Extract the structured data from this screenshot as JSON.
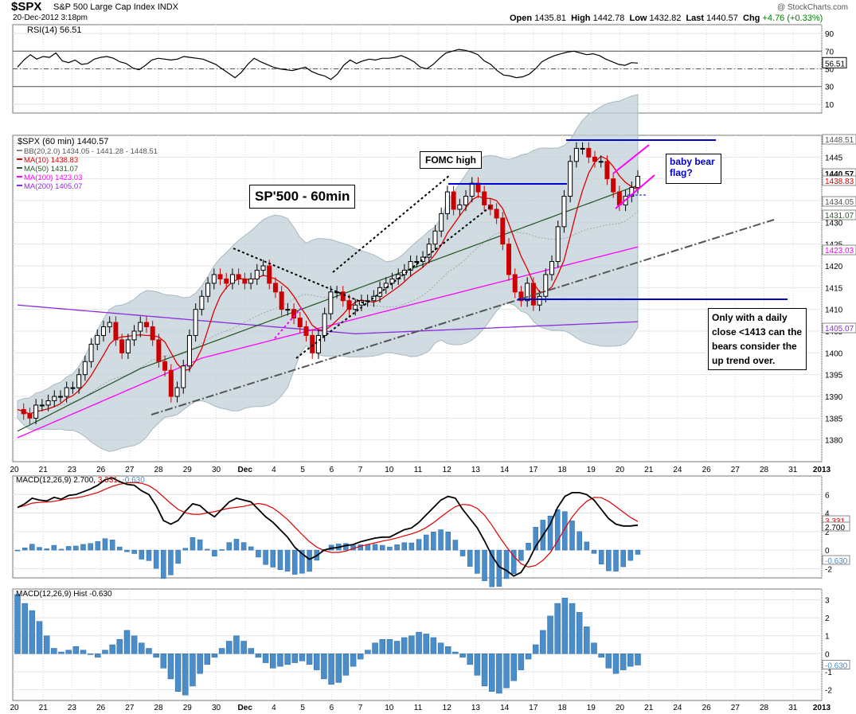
{
  "header": {
    "symbol": "$SPX",
    "description": "S&P 500 Large Cap Index",
    "exchange": "INDX",
    "datetime": "20-Dec-2012 3:18pm",
    "brand": "@ StockCharts.com",
    "open_label": "Open",
    "open": "1435.81",
    "high_label": "High",
    "high": "1442.78",
    "low_label": "Low",
    "low": "1432.82",
    "last_label": "Last",
    "last": "1440.57",
    "chg_label": "Chg",
    "chg": "+4.76 (+0.33%)"
  },
  "colors": {
    "up": "#000000",
    "down": "#cc0000",
    "ma10": "#e00000",
    "ma50": "#2a5a2a",
    "ma100": "#ff00ff",
    "ma200": "#8a2be2",
    "bb_fill": "#c0d0d8",
    "macd_signal": "#e00000",
    "hist": "#4b8dc8",
    "annotation_blue": "#0000cc"
  },
  "chart_data": [
    {
      "type": "line",
      "panel": "RSI",
      "legend": "RSI(14) 56.51",
      "last_value": "56.51",
      "ylim": [
        0,
        100
      ],
      "ticks": [
        "90",
        "70",
        "50",
        "30",
        "10"
      ],
      "reference_lines": [
        70,
        50,
        30
      ],
      "values": [
        52,
        60,
        66,
        61,
        64,
        63,
        68,
        59,
        57,
        60,
        55,
        56,
        61,
        63,
        64,
        62,
        58,
        56,
        51,
        49,
        54,
        60,
        62,
        61,
        60,
        61,
        64,
        63,
        62,
        61,
        58,
        55,
        50,
        45,
        40,
        46,
        55,
        62,
        58,
        55,
        52,
        50,
        49,
        48,
        50,
        52,
        47,
        44,
        42,
        38,
        44,
        54,
        60,
        56,
        59,
        61,
        60,
        62,
        62,
        63,
        65,
        62,
        58,
        52,
        50,
        55,
        62,
        68,
        70,
        72,
        71,
        69,
        66,
        59,
        55,
        48,
        43,
        42,
        40,
        41,
        44,
        50,
        58,
        62,
        65,
        67,
        69,
        70,
        68,
        66,
        67,
        65,
        61,
        58,
        55,
        54,
        57,
        56.51
      ]
    },
    {
      "type": "candlestick",
      "panel": "Price",
      "legend": "$SPX (60 min) 1440.57",
      "ylim": [
        1375,
        1450
      ],
      "ticks": [
        "1445",
        "1440",
        "1435",
        "1430",
        "1425",
        "1420",
        "1415",
        "1410",
        "1405",
        "1400",
        "1395",
        "1390",
        "1385",
        "1380"
      ],
      "x_ticks": [
        "20",
        "21",
        "23",
        "26",
        "27",
        "28",
        "29",
        "30",
        "Dec",
        "4",
        "5",
        "6",
        "7",
        "10",
        "11",
        "12",
        "13",
        "14",
        "17",
        "18",
        "19",
        "20",
        "21",
        "24",
        "26",
        "27",
        "28",
        "31",
        "2013"
      ],
      "indicators": [
        {
          "name": "BB(20,2.0)",
          "text": "BB(20,2.0) 1434.05 - 1441.28 - 1448.51"
        },
        {
          "name": "MA(10)",
          "text": "MA(10) 1438.83"
        },
        {
          "name": "MA(50)",
          "text": "MA(50) 1431.07"
        },
        {
          "name": "MA(100)",
          "text": "MA(100) 1423.03"
        },
        {
          "name": "MA(200)",
          "text": "MA(200) 1405.07"
        }
      ],
      "right_labels": [
        "1448.51",
        "1440.57",
        "1438.83",
        "1434.05",
        "1431.07",
        "1423.03",
        "1405.07"
      ],
      "close": [
        1387,
        1386,
        1385,
        1388,
        1388,
        1389,
        1390,
        1390,
        1392,
        1392,
        1395,
        1398,
        1402,
        1404,
        1406,
        1407,
        1403,
        1400,
        1403,
        1405,
        1407,
        1406,
        1403,
        1398,
        1396,
        1390,
        1392,
        1397,
        1404,
        1410,
        1413,
        1416,
        1418,
        1417,
        1416,
        1418,
        1417,
        1416,
        1417,
        1419,
        1420,
        1416,
        1414,
        1410,
        1410,
        1408,
        1406,
        1404,
        1400,
        1404,
        1409,
        1414,
        1414,
        1412,
        1410,
        1411,
        1412,
        1412,
        1413,
        1415,
        1416,
        1417,
        1418,
        1419,
        1421,
        1421,
        1422,
        1425,
        1428,
        1432,
        1437,
        1433,
        1434,
        1436,
        1439,
        1437,
        1434,
        1433,
        1431,
        1425,
        1418,
        1414,
        1412,
        1416,
        1411,
        1413,
        1418,
        1421,
        1429,
        1436,
        1444,
        1447,
        1447,
        1445,
        1444,
        1444,
        1440,
        1437,
        1434,
        1436,
        1438,
        1440.57
      ]
    },
    {
      "type": "line",
      "panel": "MACD",
      "legend": "MACD(12,26,9) 2.700, 3.331, -0.630",
      "legend_parts": [
        "MACD(12,26,9)",
        "2.700,",
        "3.331,",
        "-0.630"
      ],
      "ticks": [
        "6",
        "4",
        "2",
        "0",
        "-2"
      ],
      "right_labels": [
        "3.331",
        "2.700",
        "-0.630"
      ],
      "ylim": [
        -3,
        8
      ],
      "macd": [
        4.6,
        5.0,
        5.6,
        5.4,
        5.3,
        5.7,
        5.5,
        5.9,
        6.0,
        6.3,
        6.6,
        7.0,
        7.6,
        7.8,
        7.4,
        7.1,
        7.0,
        6.4,
        6.0,
        4.8,
        3.2,
        2.8,
        3.2,
        4.2,
        5.0,
        4.8,
        4.1,
        3.6,
        4.4,
        5.2,
        5.6,
        5.4,
        5.2,
        4.4,
        3.6,
        3.0,
        2.2,
        1.4,
        0.3,
        -0.4,
        -1.0,
        -0.6,
        0.0,
        0.2,
        0.3,
        0.5,
        0.6,
        0.9,
        1.1,
        1.3,
        1.4,
        1.4,
        1.8,
        2.2,
        2.4,
        3.0,
        3.8,
        4.6,
        5.4,
        5.8,
        5.6,
        4.4,
        3.4,
        2.4,
        1.0,
        -0.6,
        -1.8,
        -2.2,
        -2.8,
        -2.4,
        -1.2,
        0.4,
        1.6,
        2.8,
        4.6,
        5.8,
        6.2,
        6.2,
        6.0,
        5.4,
        4.4,
        3.4,
        2.8,
        2.6,
        2.6,
        2.7
      ]
    },
    {
      "type": "bar",
      "panel": "MACD Histogram",
      "legend": "MACD(12,26,9) Hist -0.630",
      "ticks": [
        "3",
        "2",
        "1",
        "0",
        "-1",
        "-2"
      ],
      "right_labels": [
        "-0.630"
      ],
      "ylim": [
        -2.6,
        3.6
      ],
      "values": [
        3.3,
        2.8,
        2.4,
        1.8,
        1.0,
        0.3,
        0.1,
        0.2,
        0.4,
        0.2,
        0.0,
        -0.2,
        0.2,
        0.5,
        0.8,
        1.3,
        1.0,
        0.6,
        0.3,
        -0.2,
        -0.8,
        -1.4,
        -2.1,
        -2.3,
        -1.8,
        -1.1,
        -0.6,
        -0.2,
        0.3,
        0.7,
        1.0,
        0.7,
        0.3,
        -0.2,
        -0.5,
        -0.8,
        -0.7,
        -0.6,
        -0.5,
        -0.4,
        -0.6,
        -0.9,
        -1.4,
        -1.7,
        -1.6,
        -1.2,
        -0.7,
        -0.3,
        0.2,
        0.6,
        0.8,
        0.8,
        0.7,
        0.9,
        1.0,
        1.2,
        1.1,
        0.9,
        0.6,
        0.4,
        0.1,
        -0.2,
        -0.6,
        -1.2,
        -1.8,
        -2.1,
        -2.2,
        -1.9,
        -1.5,
        -0.9,
        -0.3,
        0.5,
        1.3,
        2.1,
        2.8,
        3.1,
        2.8,
        2.3,
        1.5,
        0.6,
        -0.2,
        -0.8,
        -1.1,
        -0.9,
        -0.7,
        -0.63
      ]
    }
  ],
  "annotations": {
    "title_box": "SP'500 - 60min",
    "fomc": "FOMC high",
    "bear_flag": "baby bear\nflag?",
    "note": "Only with a daily\nclose <1413 can the\nbears consider the\nup trend over."
  }
}
